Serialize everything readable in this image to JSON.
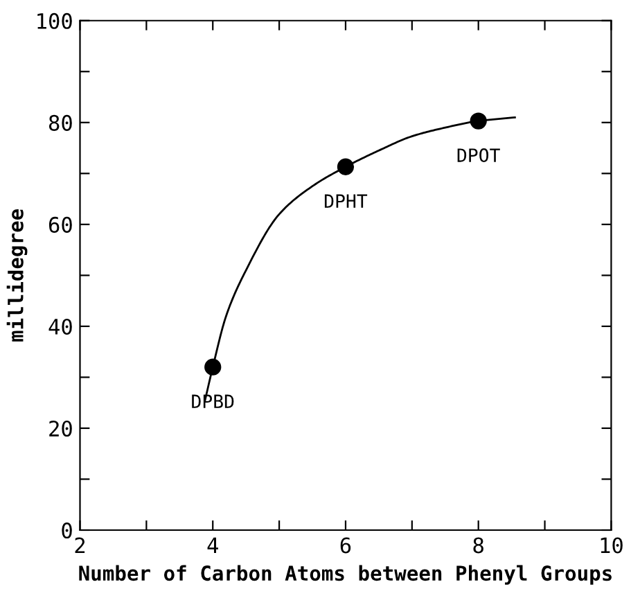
{
  "chart_data": {
    "type": "scatter",
    "xlabel": "Number of Carbon Atoms between Phenyl Groups",
    "ylabel": "millidegree",
    "xlim": [
      2,
      10
    ],
    "ylim": [
      0,
      100
    ],
    "xticks": [
      2,
      {
        "value": 3,
        "label": null
      },
      4,
      {
        "value": 5,
        "label": null
      },
      6,
      {
        "value": 7,
        "label": null
      },
      8,
      {
        "value": 9,
        "label": null
      },
      10
    ],
    "yticks": [
      0,
      {
        "value": 10,
        "label": null
      },
      20,
      {
        "value": 30,
        "label": null
      },
      40,
      {
        "value": 50,
        "label": null
      },
      60,
      {
        "value": 70,
        "label": null
      },
      80,
      {
        "value": 90,
        "label": null
      },
      100
    ],
    "grid": false,
    "legend": false,
    "series": [
      {
        "color": "#000000",
        "marker": "circle",
        "x": [
          4,
          6,
          8
        ],
        "values": [
          32,
          71.3,
          80.3
        ]
      },
      {
        "type": "line",
        "color": "#000000",
        "marker": "none",
        "line_style": "solid",
        "x": [
          3.88,
          4,
          4.2,
          4.5,
          5,
          5.5,
          6,
          6.5,
          7,
          7.5,
          8,
          8.55
        ],
        "values": [
          25.3,
          32,
          42,
          51,
          62,
          67.5,
          71.3,
          74.5,
          77.3,
          79,
          80.3,
          81
        ]
      }
    ],
    "annotations": [
      {
        "text": "DPBD",
        "x": 4,
        "y": 32
      },
      {
        "text": "DPHT",
        "x": 6,
        "y": 71.3
      },
      {
        "text": "DPOT",
        "x": 8,
        "y": 80.3
      }
    ]
  }
}
